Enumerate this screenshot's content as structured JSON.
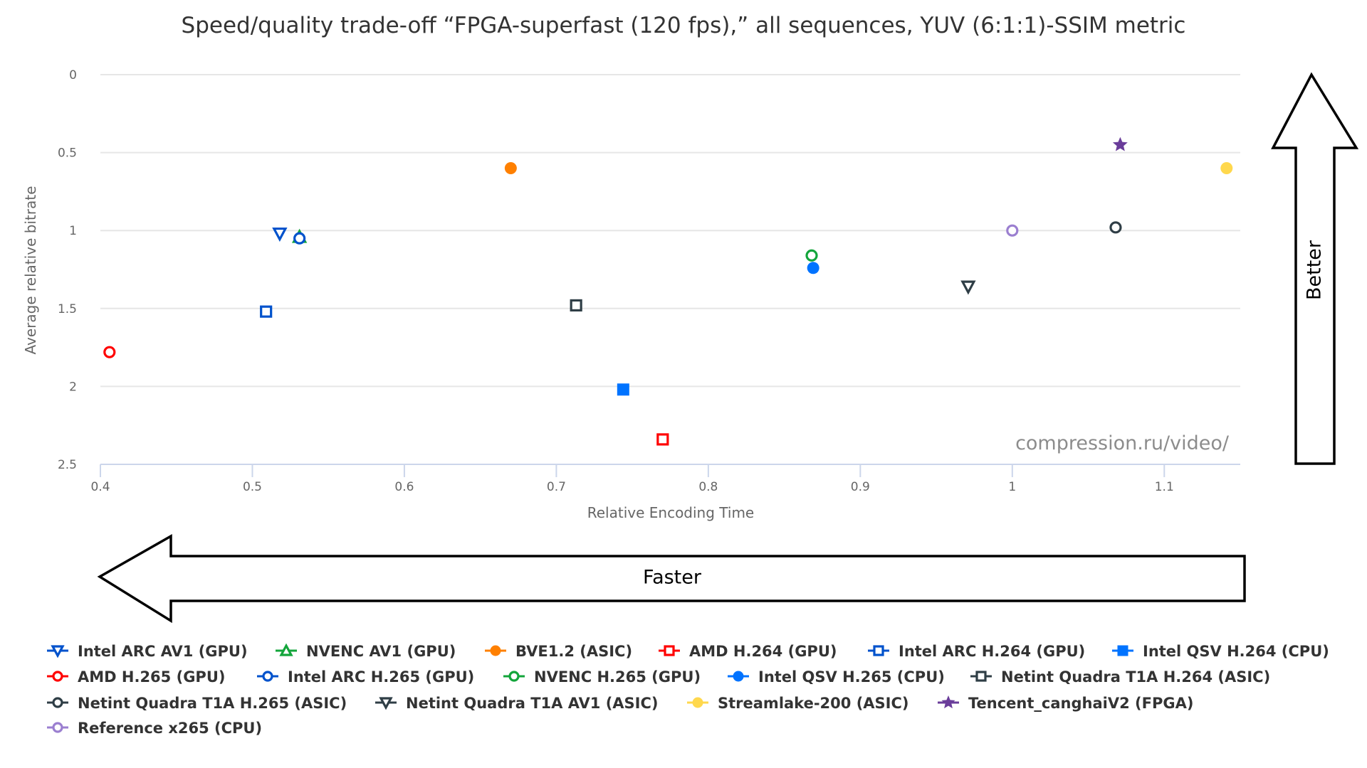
{
  "chart_data": {
    "type": "scatter",
    "title": "Speed/quality trade-off “FPGA-superfast (120 fps),” all sequences, YUV (6:1:1)-SSIM metric",
    "xlabel": "Relative Encoding Time",
    "ylabel": "Average relative bitrate",
    "xlim": [
      0.4,
      1.15
    ],
    "ylim": [
      0,
      2.5
    ],
    "y_reversed": true,
    "x_ticks": [
      "0.4",
      "0.5",
      "0.6",
      "0.7",
      "0.8",
      "0.9",
      "1",
      "1.1"
    ],
    "y_ticks": [
      "0",
      "0.5",
      "1",
      "1.5",
      "2",
      "2.5"
    ],
    "grid": "horizontal",
    "legend_position": "bottom",
    "watermark": "compression.ru/video/",
    "annotations": [
      {
        "text": "Better",
        "direction": "up"
      },
      {
        "text": "Faster",
        "direction": "left"
      }
    ],
    "series": [
      {
        "name": "Intel ARC AV1 (GPU)",
        "color": "#0052cc",
        "marker": "triangle-down",
        "filled": false,
        "x": 0.518,
        "y": 1.02
      },
      {
        "name": "NVENC AV1 (GPU)",
        "color": "#13a53b",
        "marker": "triangle",
        "filled": false,
        "x": 0.531,
        "y": 1.04
      },
      {
        "name": "BVE1.2 (ASIC)",
        "color": "#ff8000",
        "marker": "circle",
        "filled": true,
        "x": 0.67,
        "y": 0.6
      },
      {
        "name": "AMD H.264 (GPU)",
        "color": "#ff0000",
        "marker": "square",
        "filled": false,
        "x": 0.77,
        "y": 2.34
      },
      {
        "name": "Intel ARC H.264 (GPU)",
        "color": "#0052cc",
        "marker": "square",
        "filled": false,
        "x": 0.509,
        "y": 1.52
      },
      {
        "name": "Intel QSV H.264 (CPU)",
        "color": "#0073ff",
        "marker": "square",
        "filled": true,
        "x": 0.744,
        "y": 2.02
      },
      {
        "name": "AMD H.265 (GPU)",
        "color": "#ff0000",
        "marker": "circle",
        "filled": false,
        "x": 0.406,
        "y": 1.78
      },
      {
        "name": "Intel ARC H.265 (GPU)",
        "color": "#0052cc",
        "marker": "circle",
        "filled": false,
        "x": 0.531,
        "y": 1.05
      },
      {
        "name": "NVENC H.265 (GPU)",
        "color": "#13a53b",
        "marker": "circle",
        "filled": false,
        "x": 0.868,
        "y": 1.16
      },
      {
        "name": "Intel QSV H.265 (CPU)",
        "color": "#0073ff",
        "marker": "circle",
        "filled": true,
        "x": 0.869,
        "y": 1.24
      },
      {
        "name": "Netint Quadra T1A H.264 (ASIC)",
        "color": "#2f3e46",
        "marker": "square",
        "filled": false,
        "x": 0.713,
        "y": 1.48
      },
      {
        "name": "Netint Quadra T1A H.265 (ASIC)",
        "color": "#2f3e46",
        "marker": "circle",
        "filled": false,
        "x": 1.068,
        "y": 0.98
      },
      {
        "name": "Netint Quadra T1A AV1 (ASIC)",
        "color": "#2f3e46",
        "marker": "triangle-down",
        "filled": false,
        "x": 0.971,
        "y": 1.36
      },
      {
        "name": "Streamlake-200 (ASIC)",
        "color": "#ffd84d",
        "marker": "circle",
        "filled": true,
        "x": 1.141,
        "y": 0.6
      },
      {
        "name": "Tencent_canghaiV2 (FPGA)",
        "color": "#6a3d9a",
        "marker": "star",
        "filled": true,
        "x": 1.071,
        "y": 0.45
      },
      {
        "name": "Reference x265 (CPU)",
        "color": "#9b7fd0",
        "marker": "circle",
        "filled": false,
        "x": 1.0,
        "y": 1.0
      }
    ]
  }
}
